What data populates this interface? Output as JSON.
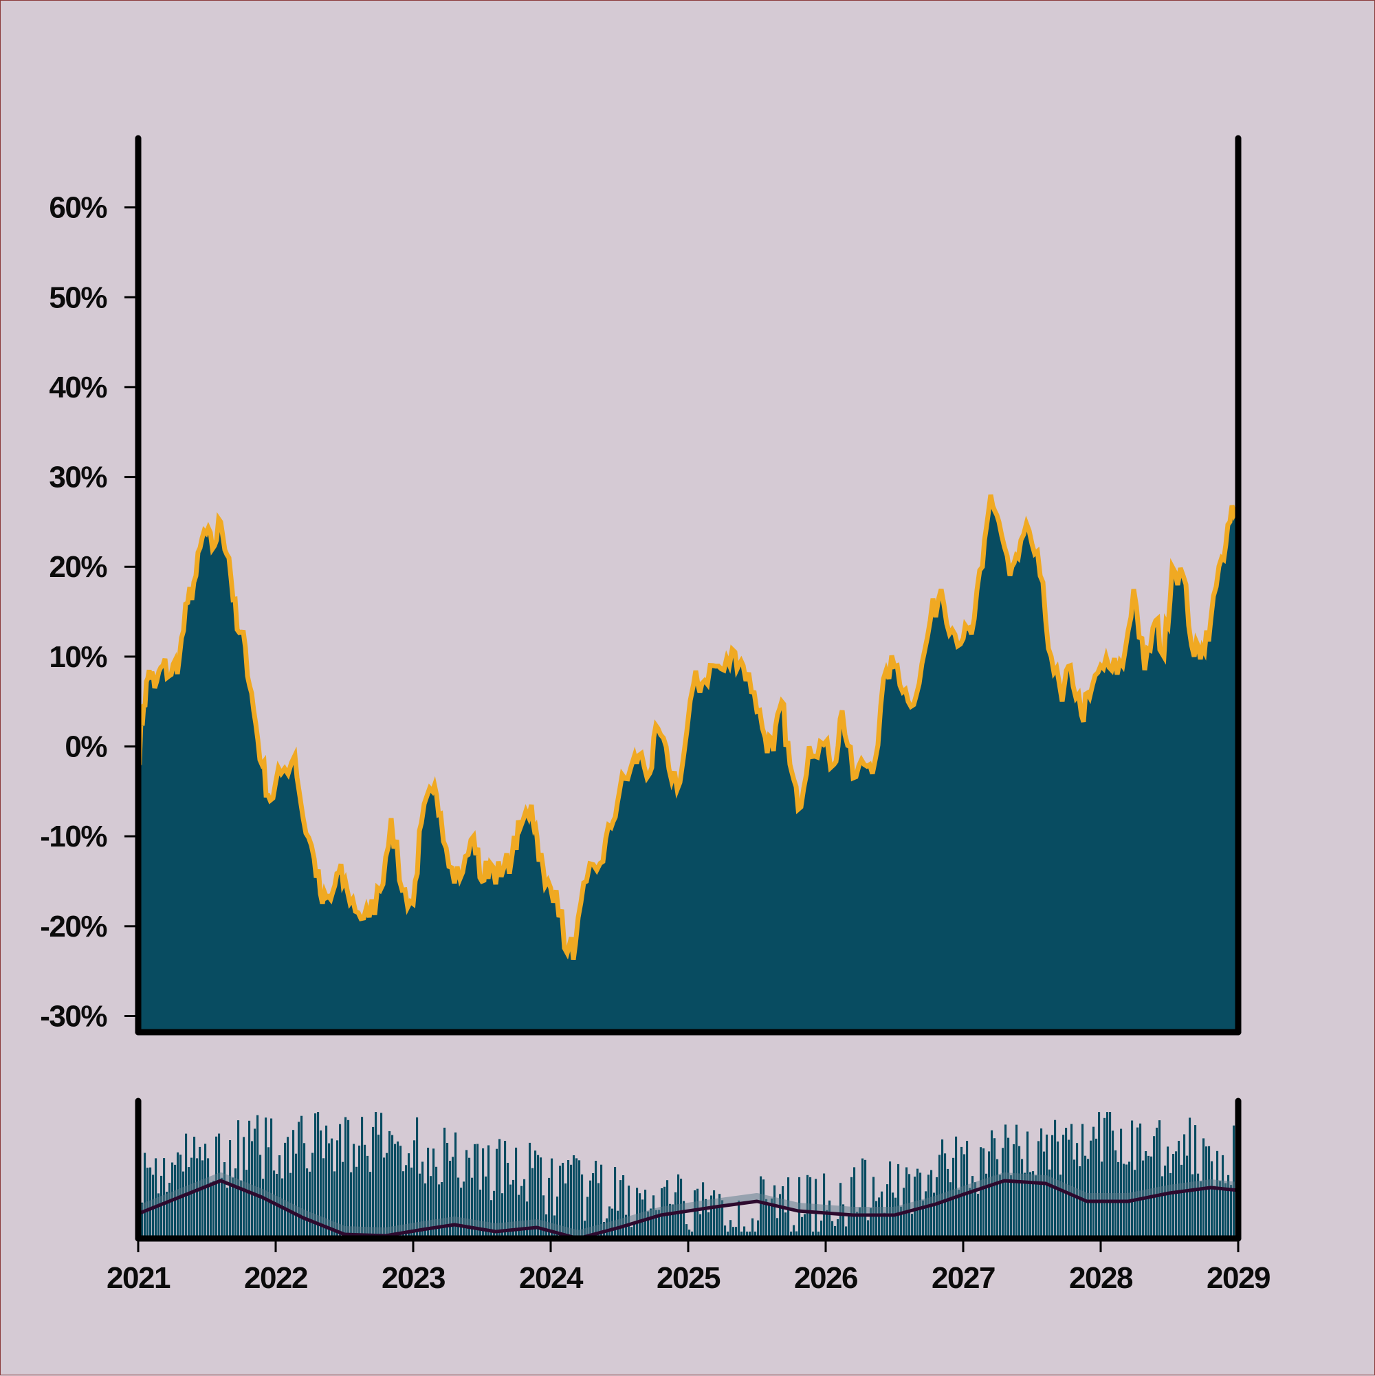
{
  "chart_data": [
    {
      "type": "area",
      "title": "",
      "xlabel": "",
      "ylabel": "",
      "y_tick_labels": [
        "-30%",
        "-20%",
        "-10%",
        "0%",
        "10%",
        "20%",
        "30%",
        "40%",
        "50%",
        "60%"
      ],
      "y_ticks": [
        -30,
        -20,
        -10,
        0,
        10,
        20,
        30,
        40,
        50,
        60
      ],
      "ylim": [
        -31.8,
        67.7
      ],
      "xlim": [
        "2021-01",
        "2029-01"
      ],
      "grid": false,
      "series": [
        {
          "values_pct": [
            [
              2021.0,
              -1.5
            ],
            [
              2021.04,
              4.5
            ],
            [
              2021.08,
              8.5
            ],
            [
              2021.12,
              6.5
            ],
            [
              2021.18,
              9.0
            ],
            [
              2021.24,
              8.0
            ],
            [
              2021.3,
              10.0
            ],
            [
              2021.36,
              16.0
            ],
            [
              2021.42,
              19.0
            ],
            [
              2021.48,
              24.0
            ],
            [
              2021.54,
              22.0
            ],
            [
              2021.6,
              25.0
            ],
            [
              2021.66,
              21.0
            ],
            [
              2021.72,
              13.0
            ],
            [
              2021.78,
              11.0
            ],
            [
              2021.84,
              4.0
            ],
            [
              2021.9,
              -2.0
            ],
            [
              2021.96,
              -6.0
            ],
            [
              2022.04,
              -3.0
            ],
            [
              2022.14,
              -1.0
            ],
            [
              2022.2,
              -8.0
            ],
            [
              2022.28,
              -12.5
            ],
            [
              2022.34,
              -17.5
            ],
            [
              2022.4,
              -17.0
            ],
            [
              2022.46,
              -14.0
            ],
            [
              2022.52,
              -16.0
            ],
            [
              2022.6,
              -18.5
            ],
            [
              2022.68,
              -19.0
            ],
            [
              2022.76,
              -16.0
            ],
            [
              2022.84,
              -8.0
            ],
            [
              2022.92,
              -16.0
            ],
            [
              2023.0,
              -17.5
            ],
            [
              2023.06,
              -8.5
            ],
            [
              2023.14,
              -5.0
            ],
            [
              2023.2,
              -7.5
            ],
            [
              2023.28,
              -13.5
            ],
            [
              2023.36,
              -14.0
            ],
            [
              2023.44,
              -10.0
            ],
            [
              2023.5,
              -15.0
            ],
            [
              2023.56,
              -13.0
            ],
            [
              2023.64,
              -14.5
            ],
            [
              2023.72,
              -12.0
            ],
            [
              2023.78,
              -9.0
            ],
            [
              2023.86,
              -6.5
            ],
            [
              2023.9,
              -10.0
            ],
            [
              2023.96,
              -15.5
            ],
            [
              2024.04,
              -16.0
            ],
            [
              2024.12,
              -23.0
            ],
            [
              2024.18,
              -22.0
            ],
            [
              2024.26,
              -15.0
            ],
            [
              2024.36,
              -13.0
            ],
            [
              2024.44,
              -9.0
            ],
            [
              2024.5,
              -5.0
            ],
            [
              2024.58,
              -2.5
            ],
            [
              2024.64,
              -1.0
            ],
            [
              2024.72,
              -3.0
            ],
            [
              2024.78,
              2.0
            ],
            [
              2024.86,
              -2.5
            ],
            [
              2024.94,
              -4.0
            ],
            [
              2025.04,
              7.0
            ],
            [
              2025.1,
              7.0
            ],
            [
              2025.18,
              9.0
            ],
            [
              2025.26,
              8.5
            ],
            [
              2025.34,
              10.5
            ],
            [
              2025.4,
              9.0
            ],
            [
              2025.48,
              6.0
            ],
            [
              2025.56,
              1.0
            ],
            [
              2025.62,
              -0.5
            ],
            [
              2025.68,
              5.0
            ],
            [
              2025.74,
              -2.0
            ],
            [
              2025.8,
              -7.0
            ],
            [
              2025.88,
              0.0
            ],
            [
              2025.96,
              0.5
            ],
            [
              2026.06,
              -2.0
            ],
            [
              2026.12,
              4.0
            ],
            [
              2026.2,
              -3.5
            ],
            [
              2026.28,
              -2.0
            ],
            [
              2026.36,
              -1.5
            ],
            [
              2026.44,
              8.5
            ],
            [
              2026.52,
              9.0
            ],
            [
              2026.6,
              5.0
            ],
            [
              2026.68,
              7.0
            ],
            [
              2026.76,
              14.0
            ],
            [
              2026.84,
              17.5
            ],
            [
              2026.92,
              13.0
            ],
            [
              2027.0,
              12.0
            ],
            [
              2027.06,
              12.5
            ],
            [
              2027.14,
              20.0
            ],
            [
              2027.2,
              28.0
            ],
            [
              2027.26,
              25.0
            ],
            [
              2027.34,
              19.0
            ],
            [
              2027.4,
              21.0
            ],
            [
              2027.48,
              24.0
            ],
            [
              2027.56,
              19.0
            ],
            [
              2027.64,
              10.0
            ],
            [
              2027.72,
              5.0
            ],
            [
              2027.78,
              9.0
            ],
            [
              2027.86,
              3.5
            ],
            [
              2027.92,
              5.5
            ],
            [
              2028.0,
              9.0
            ],
            [
              2028.08,
              8.5
            ],
            [
              2028.16,
              9.0
            ],
            [
              2028.24,
              17.5
            ],
            [
              2028.32,
              8.5
            ],
            [
              2028.4,
              14.0
            ],
            [
              2028.46,
              10.0
            ],
            [
              2028.52,
              20.0
            ],
            [
              2028.6,
              19.0
            ],
            [
              2028.68,
              10.0
            ],
            [
              2028.74,
              11.0
            ],
            [
              2028.8,
              14.0
            ],
            [
              2028.88,
              21.0
            ],
            [
              2028.94,
              25.0
            ],
            [
              2029.0,
              26.5
            ]
          ]
        }
      ],
      "colors": {
        "fill": "#084c61",
        "line": "#f0a922"
      }
    },
    {
      "type": "bar",
      "title": "",
      "xlabel": "",
      "ylabel": "",
      "x_tick_labels": [
        "2021",
        "2022",
        "2023",
        "2024",
        "2025",
        "2026",
        "2027",
        "2028",
        "2029"
      ],
      "x_ticks": [
        2021,
        2022,
        2023,
        2024,
        2025,
        2026,
        2027,
        2028,
        2029
      ],
      "xlim": [
        2021,
        2029
      ],
      "grid": false,
      "series": [
        {
          "smoothed_level": [
            [
              2021.0,
              0.18
            ],
            [
              2021.3,
              0.3
            ],
            [
              2021.6,
              0.42
            ],
            [
              2021.9,
              0.3
            ],
            [
              2022.2,
              0.15
            ],
            [
              2022.5,
              0.03
            ],
            [
              2022.8,
              0.02
            ],
            [
              2023.1,
              0.07
            ],
            [
              2023.3,
              0.1
            ],
            [
              2023.6,
              0.05
            ],
            [
              2023.9,
              0.08
            ],
            [
              2024.2,
              0.0
            ],
            [
              2024.5,
              0.08
            ],
            [
              2024.8,
              0.17
            ],
            [
              2025.2,
              0.23
            ],
            [
              2025.5,
              0.27
            ],
            [
              2025.8,
              0.2
            ],
            [
              2026.2,
              0.17
            ],
            [
              2026.5,
              0.17
            ],
            [
              2026.8,
              0.25
            ],
            [
              2027.0,
              0.32
            ],
            [
              2027.3,
              0.42
            ],
            [
              2027.6,
              0.4
            ],
            [
              2027.9,
              0.27
            ],
            [
              2028.2,
              0.27
            ],
            [
              2028.5,
              0.33
            ],
            [
              2028.8,
              0.37
            ],
            [
              2029.0,
              0.35
            ]
          ]
        }
      ],
      "colors": {
        "bars": "#084c61",
        "smooth": "#2d0a2e",
        "ghost": "#5a7a8a"
      }
    }
  ]
}
